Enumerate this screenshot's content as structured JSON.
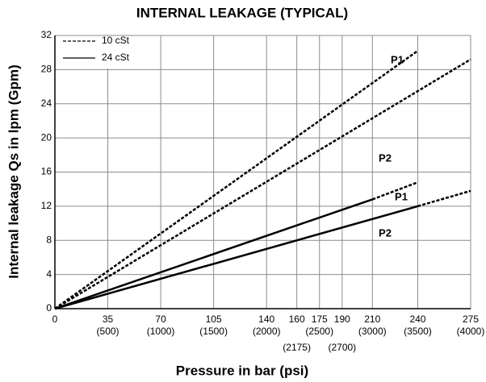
{
  "chart_data": {
    "type": "line",
    "title": "INTERNAL LEAKAGE (TYPICAL)",
    "x_label": "Pressure in bar (psi)",
    "y_label": "Internal leakage Qs in lpm (Gpm)",
    "xlim": [
      0,
      275
    ],
    "ylim": [
      0,
      32
    ],
    "xticks": [
      0,
      35,
      70,
      105,
      140,
      160,
      175,
      190,
      210,
      240,
      275
    ],
    "xtick_sublabels": [
      null,
      "(500)",
      "(1000)",
      "(1500)",
      "(2000)",
      "(2175)",
      "(2500)",
      "(2700)",
      "(3000)",
      "(3500)",
      "(4000)"
    ],
    "yticks": [
      0,
      4,
      8,
      12,
      16,
      20,
      24,
      28,
      32
    ],
    "grid": true,
    "legend": [
      {
        "label": "10 cSt",
        "line_style": "dashed"
      },
      {
        "label": "24 cSt",
        "line_style": "solid"
      }
    ],
    "legend_position": "upper left",
    "series": [
      {
        "name": "P1",
        "color": "#000000",
        "x": [
          0,
          240
        ],
        "values": [
          0,
          30.2
        ],
        "line_styles": [
          "dashed"
        ]
      },
      {
        "name": "P2",
        "color": "#000000",
        "x": [
          0,
          275
        ],
        "values": [
          0,
          29.2
        ],
        "line_styles": [
          "dashed"
        ]
      },
      {
        "name": "P1",
        "color": "#000000",
        "x": [
          0,
          210,
          240
        ],
        "values": [
          0,
          12.8,
          14.8
        ],
        "line_styles": [
          "solid",
          "dashed"
        ]
      },
      {
        "name": "P2",
        "color": "#000000",
        "x": [
          0,
          240,
          275
        ],
        "values": [
          0,
          12,
          13.8
        ],
        "line_styles": [
          "solid",
          "dashed"
        ]
      }
    ]
  }
}
